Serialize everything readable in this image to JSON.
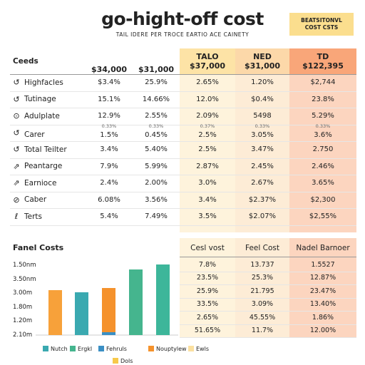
{
  "header": {
    "title": "go-hight-off cost",
    "subtitle": "TAIL IDERE PER TROCE EARTIO ACE CAINETY",
    "badge": [
      "BEATSITONVL",
      "COST CSTS"
    ]
  },
  "table": {
    "columns": [
      [
        "Ceeds"
      ],
      [
        "$34,000"
      ],
      [
        "$31,000"
      ],
      [
        "TALO",
        "$37,000"
      ],
      [
        "NED",
        "$31,000"
      ],
      [
        "TD",
        "$122,395"
      ]
    ],
    "subrow": [
      "0.33%",
      "0.33%",
      "0.37%",
      "0.33%",
      "0.33%"
    ],
    "rows": [
      [
        "Highfacles",
        "$3.4%",
        "25.9%",
        "2.65%",
        "1.20%",
        "$2,744"
      ],
      [
        "Tutinage",
        "15.1%",
        "14.66%",
        "12.0%",
        "$0.4%",
        "23.8%"
      ],
      [
        "Adulplate",
        "12.9%",
        "2.55%",
        "2.09%",
        "5498",
        "5.29%"
      ],
      [
        "Carer",
        "1.5%",
        "0.45%",
        "2.5%",
        "3.05%",
        "3.6%"
      ],
      [
        "Total Teilter",
        "3.4%",
        "5.40%",
        "2.5%",
        "3.47%",
        "2.750"
      ],
      [
        "Peantarge",
        "7.9%",
        "5.99%",
        "2.87%",
        "2.45%",
        "2.46%"
      ],
      [
        "Earnioce",
        "2.4%",
        "2.00%",
        "3.0%",
        "2.67%",
        "3.65%"
      ],
      [
        "Caber",
        "6.08%",
        "3.56%",
        "3.4%",
        "$2.37%",
        "$2,300"
      ],
      [
        "Terts",
        "5.4%",
        "7.49%",
        "3.5%",
        "$2.07%",
        "$2,55%"
      ]
    ]
  },
  "panel": {
    "title": "Fanel Costs",
    "axis_labels": [
      "1.50nm",
      "3.50nm",
      "3.00m",
      "1.80m",
      "1.20m",
      "2.10m"
    ],
    "legend": [
      "Nutch",
      "Ergkl",
      "Fehruls",
      "Nouptylew",
      "Ewls",
      "Dols"
    ]
  },
  "costs": {
    "columns": [
      "Cesl vost",
      "Feel Cost",
      "Nadel Barnoer"
    ],
    "rows": [
      [
        "7.8%",
        "13.737",
        "1.5527"
      ],
      [
        "23.5%",
        "25.3%",
        "12.87%"
      ],
      [
        "25.9%",
        "21.795",
        "23.47%"
      ],
      [
        "33.5%",
        "3.09%",
        "13.40%"
      ],
      [
        "2.65%",
        "45.55%",
        "1.86%"
      ],
      [
        "51.65%",
        "11.7%",
        "12.00%"
      ]
    ]
  }
}
